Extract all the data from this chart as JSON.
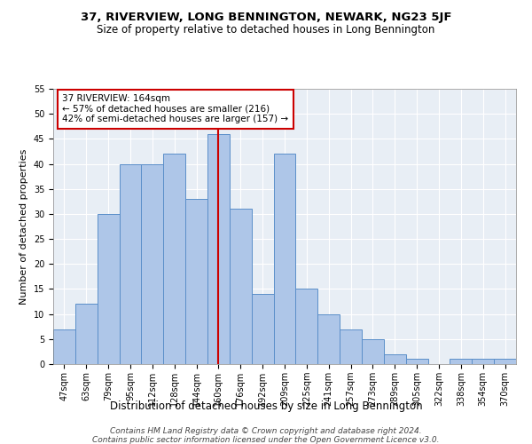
{
  "title": "37, RIVERVIEW, LONG BENNINGTON, NEWARK, NG23 5JF",
  "subtitle": "Size of property relative to detached houses in Long Bennington",
  "xlabel": "Distribution of detached houses by size in Long Bennington",
  "ylabel": "Number of detached properties",
  "categories": [
    "47sqm",
    "63sqm",
    "79sqm",
    "95sqm",
    "112sqm",
    "128sqm",
    "144sqm",
    "160sqm",
    "176sqm",
    "192sqm",
    "209sqm",
    "225sqm",
    "241sqm",
    "257sqm",
    "273sqm",
    "289sqm",
    "305sqm",
    "322sqm",
    "338sqm",
    "354sqm",
    "370sqm"
  ],
  "values": [
    7,
    12,
    30,
    40,
    40,
    42,
    33,
    46,
    31,
    14,
    42,
    15,
    10,
    7,
    5,
    2,
    1,
    0,
    1,
    1,
    1
  ],
  "bar_color": "#aec6e8",
  "bar_edge_color": "#5b8fc9",
  "highlight_index": 7,
  "highlight_line_color": "#cc0000",
  "annotation_text": "37 RIVERVIEW: 164sqm\n← 57% of detached houses are smaller (216)\n42% of semi-detached houses are larger (157) →",
  "annotation_box_color": "#ffffff",
  "annotation_box_edge_color": "#cc0000",
  "ylim": [
    0,
    55
  ],
  "yticks": [
    0,
    5,
    10,
    15,
    20,
    25,
    30,
    35,
    40,
    45,
    50,
    55
  ],
  "background_color": "#e8eef5",
  "footer_line1": "Contains HM Land Registry data © Crown copyright and database right 2024.",
  "footer_line2": "Contains public sector information licensed under the Open Government Licence v3.0.",
  "title_fontsize": 9.5,
  "subtitle_fontsize": 8.5,
  "xlabel_fontsize": 8.5,
  "ylabel_fontsize": 8,
  "tick_fontsize": 7,
  "annotation_fontsize": 7.5,
  "footer_fontsize": 6.5
}
